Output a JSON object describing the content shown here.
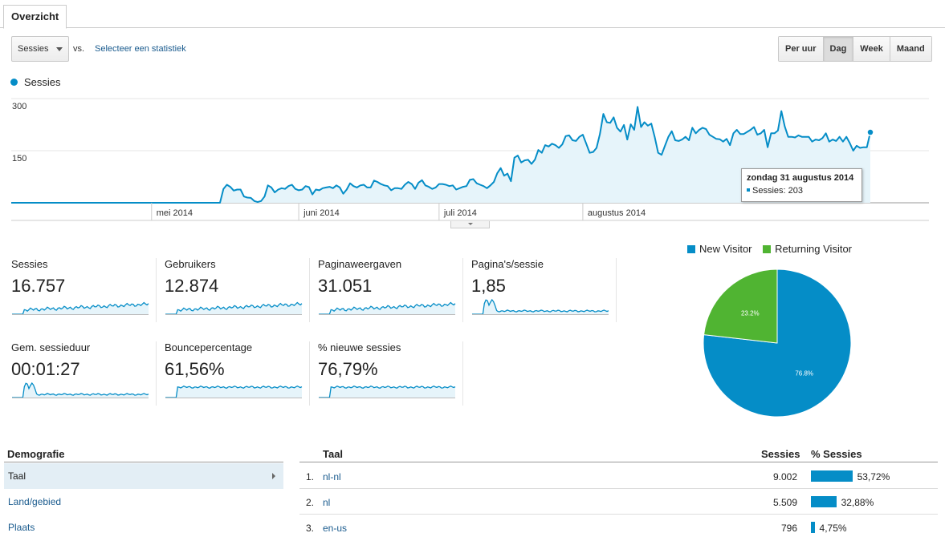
{
  "tabs": {
    "overview": "Overzicht"
  },
  "controls": {
    "metric": "Sessies",
    "vs": "vs.",
    "select_stat": "Selecteer een statistiek",
    "granularity": [
      "Per uur",
      "Dag",
      "Week",
      "Maand"
    ],
    "active_granularity": "Dag"
  },
  "legend": {
    "series_name": "Sessies"
  },
  "tooltip": {
    "date": "zondag 31 augustus 2014",
    "label": "Sessies: 203"
  },
  "colors": {
    "series": "#058dc7",
    "fill": "#e6f4fa",
    "new_visitor": "#058dc7",
    "returning_visitor": "#50b432"
  },
  "chart_data": [
    {
      "type": "area",
      "series": [
        {
          "name": "Sessies",
          "values": [
            0,
            0,
            0,
            0,
            0,
            0,
            0,
            0,
            0,
            0,
            0,
            0,
            0,
            0,
            0,
            0,
            0,
            0,
            0,
            0,
            0,
            0,
            0,
            0,
            0,
            0,
            0,
            0,
            0,
            0,
            0,
            0,
            0,
            0,
            0,
            0,
            0,
            0,
            0,
            0,
            0,
            0,
            0,
            0,
            0,
            0,
            0,
            0,
            0,
            0,
            0,
            0,
            0,
            0,
            0,
            0,
            0,
            0,
            0,
            0,
            0,
            0,
            40,
            52,
            46,
            35,
            38,
            38,
            18,
            15,
            14,
            5,
            2,
            5,
            18,
            50,
            44,
            30,
            38,
            42,
            40,
            48,
            52,
            40,
            36,
            38,
            48,
            45,
            24,
            38,
            36,
            42,
            44,
            46,
            42,
            50,
            44,
            26,
            38,
            56,
            48,
            44,
            50,
            52,
            44,
            44,
            64,
            60,
            54,
            50,
            48,
            36,
            42,
            42,
            40,
            52,
            60,
            54,
            40,
            58,
            65,
            50,
            46,
            40,
            44,
            54,
            54,
            52,
            48,
            50,
            38,
            42,
            46,
            48,
            66,
            68,
            56,
            52,
            48,
            42,
            50,
            60,
            85,
            100,
            78,
            84,
            62,
            130,
            136,
            116,
            122,
            124,
            112,
            124,
            152,
            144,
            166,
            162,
            170,
            166,
            158,
            168,
            192,
            194,
            180,
            178,
            190,
            196,
            170,
            144,
            146,
            158,
            198,
            256,
            232,
            230,
            246,
            216,
            205,
            224,
            182,
            226,
            210,
            276,
            218,
            232,
            222,
            228,
            190,
            144,
            138,
            164,
            190,
            206,
            180,
            178,
            182,
            190,
            180,
            216,
            200,
            210,
            216,
            212,
            196,
            190,
            184,
            183,
            176,
            184,
            166,
            200,
            210,
            198,
            198,
            204,
            210,
            218,
            196,
            200,
            210,
            160,
            200,
            200,
            208,
            264,
            220,
            190,
            190,
            188,
            194,
            190,
            190,
            190,
            176,
            182,
            180,
            186,
            200,
            176,
            182,
            178,
            190,
            176,
            190,
            172,
            150,
            164,
            158,
            160,
            160,
            203
          ]
        }
      ],
      "x_labels": [
        "mei 2014",
        "juni 2014",
        "juli 2014",
        "augustus 2014"
      ],
      "y_ticks": [
        "300",
        "150"
      ],
      "ylim": [
        0,
        300
      ],
      "grid": true
    },
    {
      "type": "pie",
      "categories": [
        "New Visitor",
        "Returning Visitor"
      ],
      "values": [
        76.8,
        23.2
      ],
      "labels": [
        "76.8%",
        "23.2%"
      ],
      "legend": "top"
    }
  ],
  "scorecards": [
    {
      "label": "Sessies",
      "value": "16.757",
      "shape": "growth"
    },
    {
      "label": "Gebruikers",
      "value": "12.874",
      "shape": "growth"
    },
    {
      "label": "Paginaweergaven",
      "value": "31.051",
      "shape": "growth"
    },
    {
      "label": "Pagina's/sessie",
      "value": "1,85",
      "shape": "spike"
    },
    {
      "label": "Gem. sessieduur",
      "value": "00:01:27",
      "shape": "spike"
    },
    {
      "label": "Bouncepercentage",
      "value": "61,56%",
      "shape": "step"
    },
    {
      "label": "% nieuwe sessies",
      "value": "76,79%",
      "shape": "step"
    }
  ],
  "demographics": {
    "heading": "Demografie",
    "items": [
      "Taal",
      "Land/gebied",
      "Plaats"
    ],
    "active": "Taal"
  },
  "table": {
    "headers": {
      "name": "Taal",
      "sessions": "Sessies",
      "pct": "% Sessies"
    },
    "rows": [
      {
        "num": "1.",
        "name": "nl-nl",
        "sessions": "9.002",
        "pct": "53,72%",
        "fraction": 0.5372
      },
      {
        "num": "2.",
        "name": "nl",
        "sessions": "5.509",
        "pct": "32,88%",
        "fraction": 0.3288
      },
      {
        "num": "3.",
        "name": "en-us",
        "sessions": "796",
        "pct": "4,75%",
        "fraction": 0.0475
      }
    ]
  }
}
